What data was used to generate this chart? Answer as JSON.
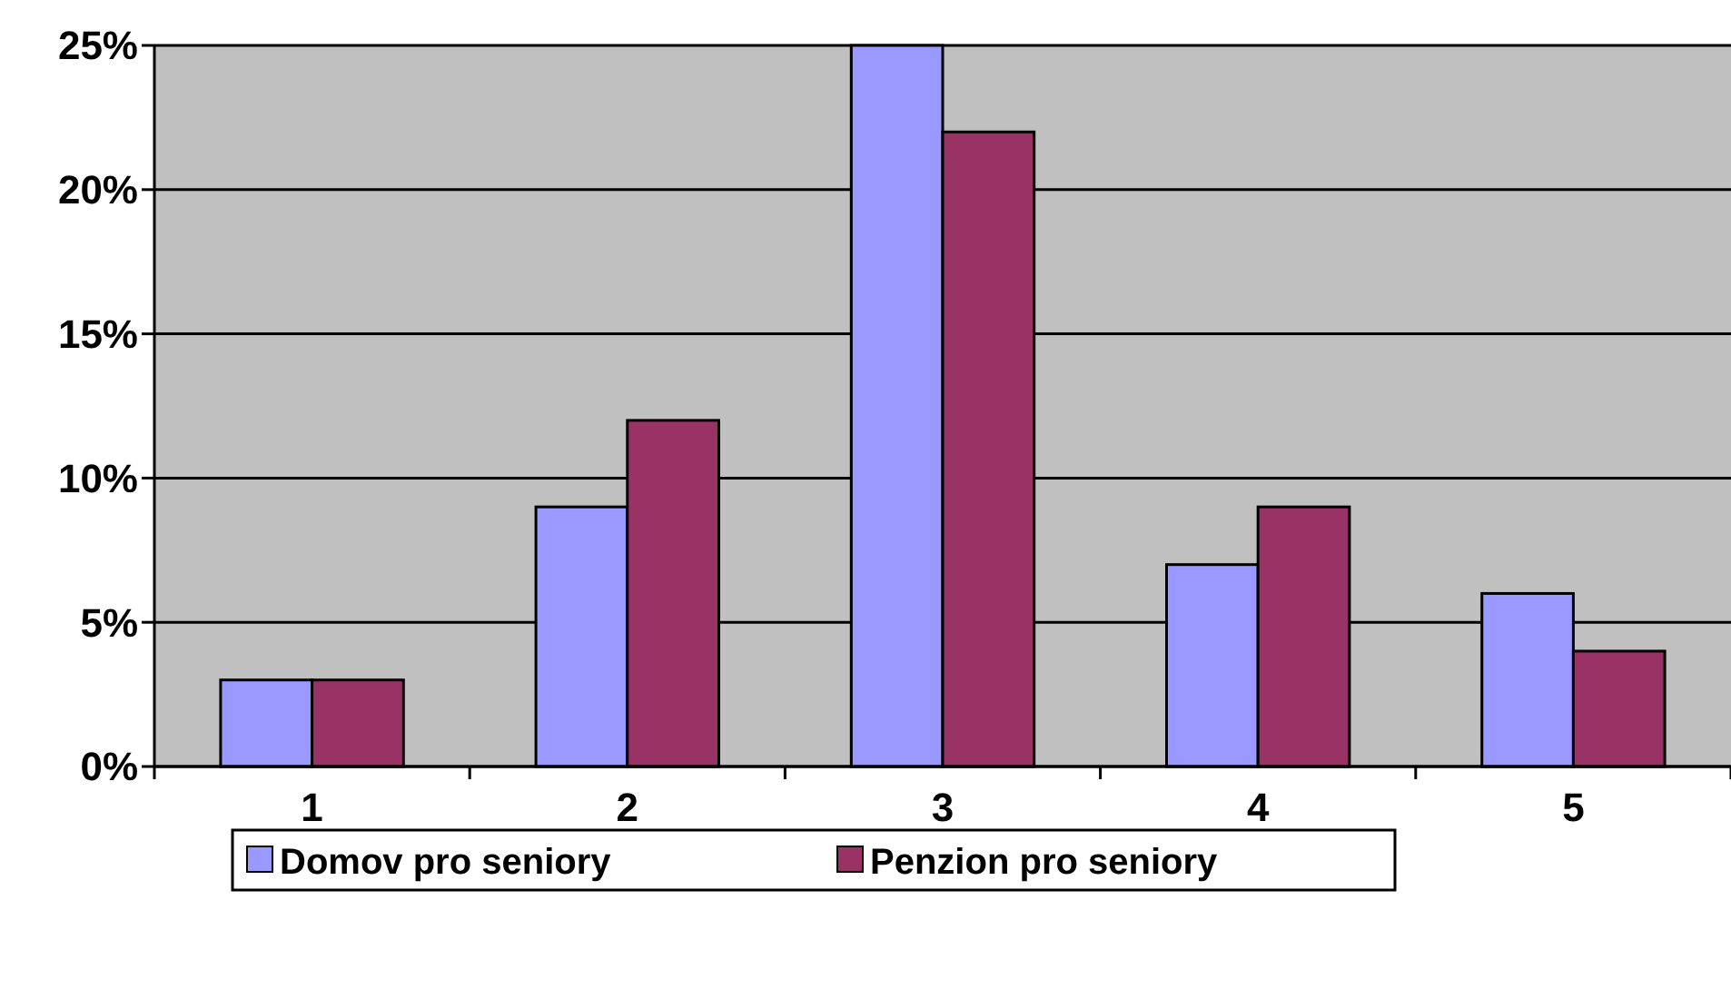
{
  "chart_data": {
    "type": "bar",
    "categories": [
      "1",
      "2",
      "3",
      "4",
      "5"
    ],
    "series": [
      {
        "name": "Domov pro seniory",
        "color": "#9999ff",
        "values": [
          3,
          9,
          25,
          7,
          6
        ]
      },
      {
        "name": "Penzion pro seniory",
        "color": "#993366",
        "values": [
          3,
          12,
          22,
          9,
          4
        ]
      }
    ],
    "ylim": [
      0,
      25
    ],
    "yticks": [
      {
        "value": 0,
        "label": "0%"
      },
      {
        "value": 5,
        "label": "5%"
      },
      {
        "value": 10,
        "label": "10%"
      },
      {
        "value": 15,
        "label": "15%"
      },
      {
        "value": 20,
        "label": "20%"
      },
      {
        "value": 25,
        "label": "25%"
      }
    ],
    "grid": "y",
    "legend": "bottom"
  }
}
